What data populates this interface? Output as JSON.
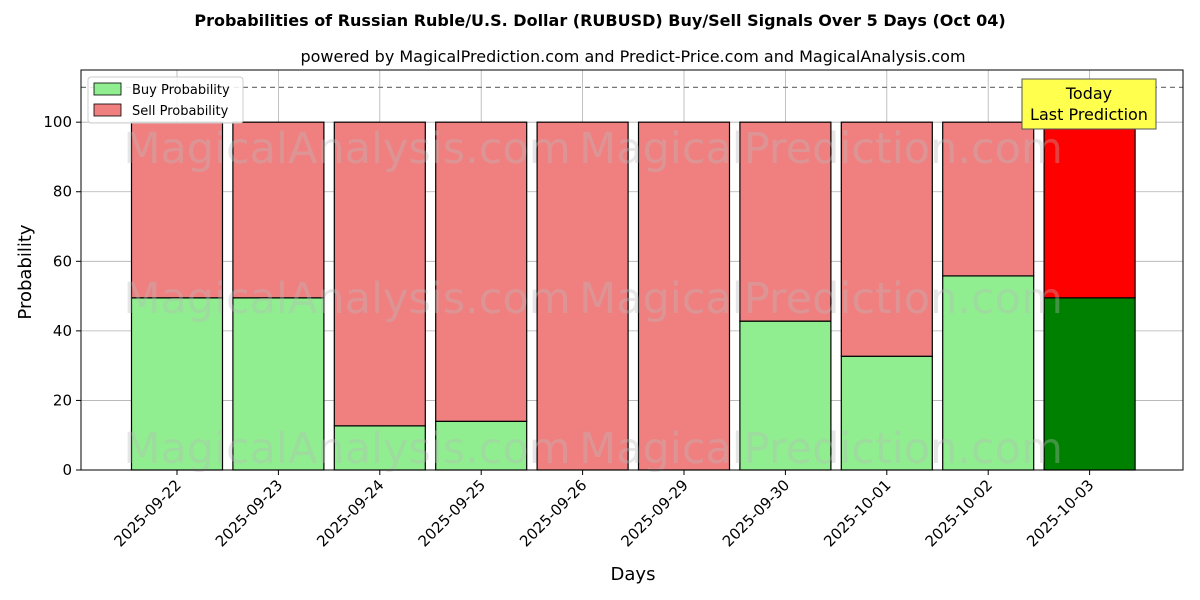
{
  "chart_data": {
    "type": "bar",
    "stacked": true,
    "title": "Probabilities of Russian Ruble/U.S. Dollar (RUBUSD) Buy/Sell Signals Over 5 Days (Oct 04)",
    "subtitle": "powered by MagicalPrediction.com and Predict-Price.com and MagicalAnalysis.com",
    "xlabel": "Days",
    "ylabel": "Probability",
    "ylim": [
      0,
      115
    ],
    "yticks": [
      0,
      20,
      40,
      60,
      80,
      100
    ],
    "grid": true,
    "reference_line": 110,
    "legend_placement": "top-left",
    "categories": [
      "2025-09-22",
      "2025-09-23",
      "2025-09-24",
      "2025-09-25",
      "2025-09-26",
      "2025-09-29",
      "2025-09-30",
      "2025-10-01",
      "2025-10-02",
      "2025-10-03"
    ],
    "series": [
      {
        "name": "Buy Probability",
        "values": [
          49.5,
          49.5,
          12.7,
          14.0,
          0,
          0,
          42.8,
          32.7,
          55.8,
          49.5
        ],
        "color": "#90ee90",
        "highlight_color": "#008000"
      },
      {
        "name": "Sell Probability",
        "values": [
          50.5,
          50.5,
          87.3,
          86.0,
          100,
          100,
          57.2,
          67.3,
          44.2,
          50.5
        ],
        "color": "#f08080",
        "highlight_color": "#ff0000"
      }
    ],
    "highlight_index": 9,
    "annotation": {
      "line1": "Today",
      "line2": "Last Prediction",
      "color": "#ffff4d"
    },
    "watermarks": [
      "MagicalAnalysis.com",
      "MagicalPrediction.com"
    ]
  }
}
